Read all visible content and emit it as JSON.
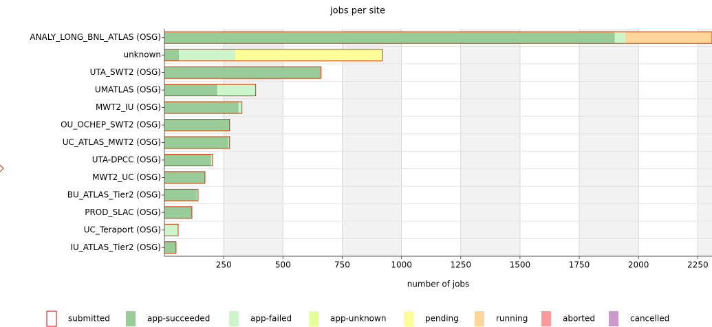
{
  "chart_data": {
    "type": "stacked-bar-horizontal",
    "title": "jobs per site",
    "x_label": "number of jobs",
    "categories": [
      "ANALY_LONG_BNL_ATLAS (OSG)",
      "unknown",
      "UTA_SWT2 (OSG)",
      "UMATLAS (OSG)",
      "MWT2_IU (OSG)",
      "OU_OCHEP_SWT2 (OSG)",
      "UC_ATLAS_MWT2 (OSG)",
      "UTA-DPCC (OSG)",
      "MWT2_UC (OSG)",
      "BU_ATLAS_Tier2 (OSG)",
      "PROD_SLAC (OSG)",
      "UC_Teraport (OSG)",
      "IU_ATLAS_Tier2 (OSG)"
    ],
    "outline_series": {
      "name": "submitted",
      "color": "#cc3300",
      "values": [
        2310,
        919,
        661,
        385,
        327,
        275,
        275,
        203,
        171,
        142,
        116,
        58,
        49
      ]
    },
    "series": [
      {
        "name": "app-succeeded",
        "color": "#99cc99",
        "values": [
          1900,
          61,
          661,
          223,
          313,
          275,
          270,
          197,
          171,
          136,
          116,
          0,
          49
        ]
      },
      {
        "name": "app-failed",
        "color": "#ccf5cc",
        "values": [
          45,
          238,
          0,
          162,
          14,
          0,
          5,
          6,
          0,
          6,
          0,
          58,
          0
        ]
      },
      {
        "name": "app-unknown",
        "color": "#e5ff99",
        "values": [
          0,
          0,
          0,
          0,
          0,
          0,
          0,
          0,
          0,
          0,
          0,
          0,
          0
        ]
      },
      {
        "name": "pending",
        "color": "#ffff99",
        "values": [
          0,
          620,
          0,
          0,
          0,
          0,
          0,
          0,
          0,
          0,
          0,
          0,
          0
        ]
      },
      {
        "name": "running",
        "color": "#ffd699",
        "values": [
          365,
          0,
          0,
          0,
          0,
          0,
          0,
          0,
          0,
          0,
          0,
          0,
          0
        ]
      },
      {
        "name": "aborted",
        "color": "#ff9999",
        "values": [
          0,
          0,
          0,
          0,
          0,
          0,
          0,
          0,
          0,
          0,
          0,
          0,
          0
        ]
      },
      {
        "name": "cancelled",
        "color": "#cc99cc",
        "values": [
          0,
          0,
          0,
          0,
          0,
          0,
          0,
          0,
          0,
          0,
          0,
          0,
          0
        ]
      }
    ],
    "xlim": [
      0,
      2310
    ],
    "xticks": [
      250,
      500,
      750,
      1000,
      1250,
      1500,
      1750,
      2000,
      2250
    ],
    "grid": true
  }
}
